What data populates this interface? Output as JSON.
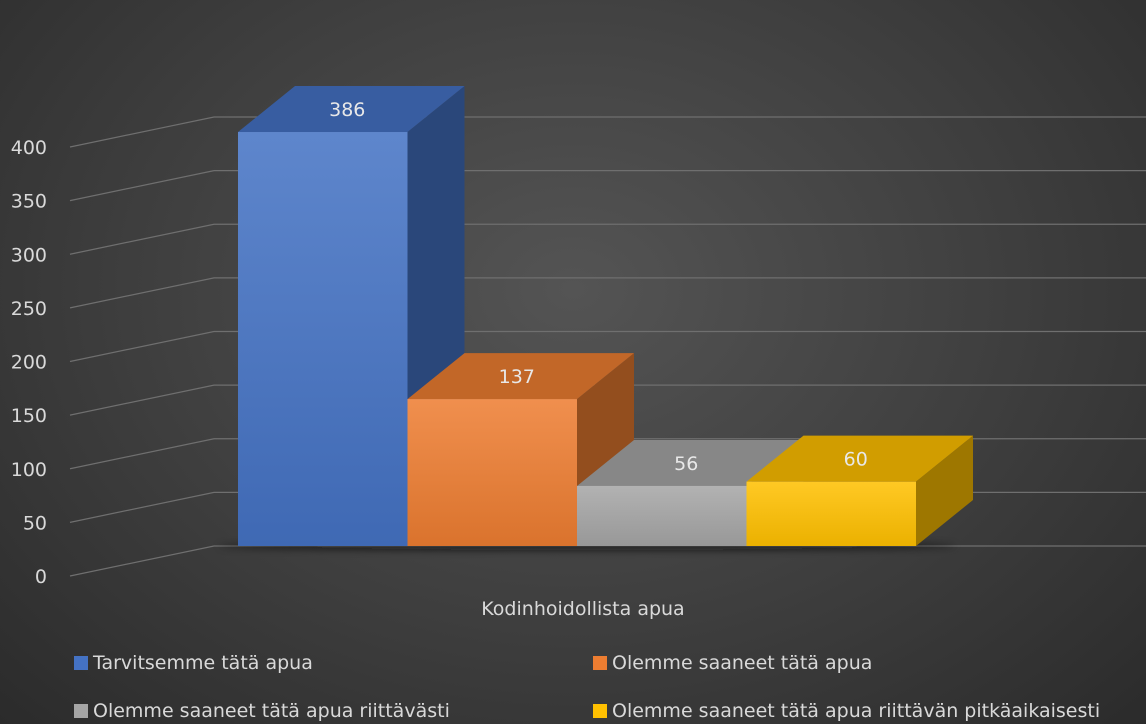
{
  "chart_data": {
    "type": "bar",
    "title": "",
    "xlabel": "",
    "ylabel": "",
    "categories": [
      "Kodinhoidollista apua"
    ],
    "series": [
      {
        "name": "Tarvitsemme tätä apua",
        "values": [
          386
        ],
        "color": "#4472c4"
      },
      {
        "name": "Olemme saaneet tätä apua",
        "values": [
          137
        ],
        "color": "#ed7d31"
      },
      {
        "name": "Olemme saaneet tätä apua riittävästi",
        "values": [
          56
        ],
        "color": "#a5a5a5"
      },
      {
        "name": "Olemme saaneet tätä apua riittävän pitkäaikaisesti",
        "values": [
          60
        ],
        "color": "#ffc000"
      }
    ],
    "ylim": [
      0,
      400
    ],
    "yticks": [
      0,
      50,
      100,
      150,
      200,
      250,
      300,
      350,
      400
    ],
    "grid": true,
    "data_labels": true,
    "legend_position": "bottom",
    "three_d": true
  }
}
